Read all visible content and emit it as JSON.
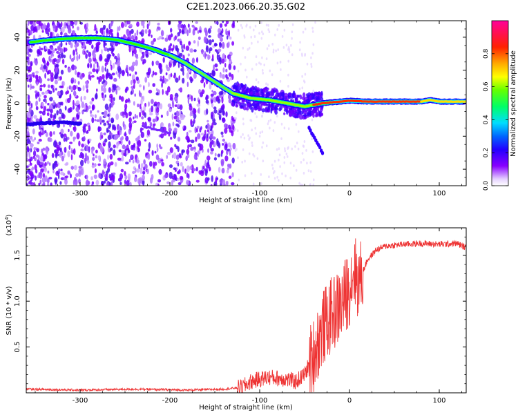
{
  "figure": {
    "title": "C2E1.2023.066.20.35.G02"
  },
  "colorbar": {
    "label": "Normalized spectral amplitude",
    "ticks": [
      "0.0",
      "0.2",
      "0.4",
      "0.6",
      "0.8"
    ]
  },
  "chart_data": [
    {
      "type": "heatmap",
      "title": "",
      "xlabel": "Height of straight line (km)",
      "ylabel": "Frequency (Hz)",
      "xlim": [
        -360,
        130
      ],
      "ylim": [
        -50,
        50
      ],
      "x_ticks": [
        -300,
        -200,
        -100,
        0,
        100
      ],
      "x_tick_labels": [
        "-300",
        "-200",
        "-100",
        "0",
        "100"
      ],
      "y_ticks": [
        -40,
        -20,
        0,
        20,
        40
      ],
      "y_tick_labels": [
        "-40",
        "-20",
        "0",
        "20",
        "40"
      ],
      "color_range": [
        0,
        1
      ],
      "main_trace": [
        [
          -355,
          37
        ],
        [
          -340,
          38
        ],
        [
          -320,
          39
        ],
        [
          -300,
          39.5
        ],
        [
          -280,
          39.5
        ],
        [
          -260,
          38.5
        ],
        [
          -240,
          36
        ],
        [
          -220,
          33
        ],
        [
          -200,
          29
        ],
        [
          -185,
          25
        ],
        [
          -170,
          20
        ],
        [
          -150,
          13
        ],
        [
          -130,
          6
        ],
        [
          -110,
          3
        ],
        [
          -90,
          2
        ],
        [
          -70,
          0
        ],
        [
          -50,
          -2
        ],
        [
          -30,
          0
        ],
        [
          -10,
          1
        ],
        [
          0,
          1.5
        ],
        [
          20,
          1
        ],
        [
          40,
          1
        ],
        [
          60,
          1
        ],
        [
          80,
          1
        ],
        [
          90,
          2
        ],
        [
          100,
          1
        ],
        [
          130,
          1
        ]
      ],
      "secondary_trace": [
        [
          -360,
          -13
        ],
        [
          -345,
          -12
        ],
        [
          -335,
          -12
        ],
        [
          -320,
          -11.5
        ],
        [
          -300,
          -12.5
        ]
      ],
      "faint_trace": [
        [
          -230,
          -14
        ],
        [
          -215,
          -16
        ],
        [
          -200,
          -18
        ]
      ],
      "branch_trace": [
        [
          -45,
          -15
        ],
        [
          -38,
          -22
        ],
        [
          -30,
          -30
        ]
      ]
    },
    {
      "type": "line",
      "title": "",
      "xlabel": "Height of straight line (km)",
      "ylabel": "SNR (10 * v/v)",
      "y_multiplier_label": "(x10",
      "y_multiplier_exp": "4",
      "xlim": [
        -360,
        130
      ],
      "ylim": [
        0,
        1.8
      ],
      "x_ticks": [
        -300,
        -200,
        -100,
        0,
        100
      ],
      "x_tick_labels": [
        "-300",
        "-200",
        "-100",
        "0",
        "100"
      ],
      "y_ticks": [
        0.5,
        1.0,
        1.5
      ],
      "y_tick_labels": [
        "0.5",
        "1.0",
        "1.5"
      ],
      "color": "#ee3333",
      "series": [
        {
          "x": [
            -360,
            -300,
            -240,
            -180,
            -140,
            -120,
            -110,
            -100,
            -90,
            -80,
            -70,
            -60,
            -50,
            -40,
            -30,
            -20,
            -10,
            0,
            5,
            10,
            20,
            30,
            40,
            60,
            80,
            100,
            120,
            130
          ],
          "values": [
            0.04,
            0.03,
            0.04,
            0.03,
            0.04,
            0.06,
            0.12,
            0.15,
            0.17,
            0.16,
            0.15,
            0.12,
            0.2,
            0.42,
            0.7,
            0.85,
            0.95,
            1.15,
            1.35,
            1.2,
            1.45,
            1.56,
            1.6,
            1.62,
            1.63,
            1.62,
            1.63,
            1.58
          ]
        }
      ]
    }
  ]
}
